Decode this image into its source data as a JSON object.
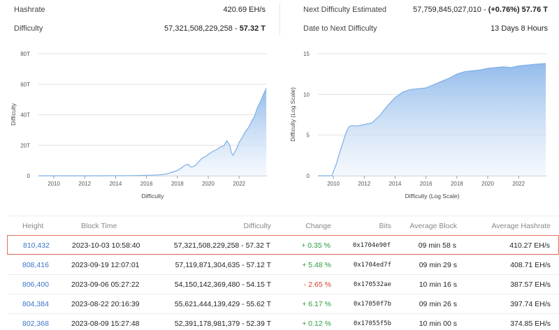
{
  "stats": {
    "hashrate_label": "Hashrate",
    "hashrate_value": "420.69 EH/s",
    "difficulty_label": "Difficulty",
    "difficulty_value_full": "57,321,508,229,258 - ",
    "difficulty_value_short": "57.32 T",
    "next_label": "Next Difficulty Estimated",
    "next_value_full": "57,759,845,027,010 - ",
    "next_value_short": "(+0.76%) 57.76 T",
    "date_label": "Date to Next Difficulty",
    "date_value": "13 Days 8 Hours"
  },
  "colors": {
    "line": "#7eaee6",
    "fill_top": "#8db8ea",
    "fill_bottom": "#eef4fc",
    "grid": "#e0e0e0",
    "positive": "#2a9d3c",
    "negative": "#d93a2b",
    "link": "#3a74c9",
    "highlight_border": "#e0705f"
  },
  "chart_data": [
    {
      "type": "area",
      "xlabel": "Difficulty",
      "ylabel": "Difficulty",
      "x_ticks": [
        "2010",
        "2012",
        "2014",
        "2016",
        "2018",
        "2020",
        "2022"
      ],
      "y_ticks": [
        "0",
        "20T",
        "40T",
        "60T",
        "80T"
      ],
      "xlim": [
        2009.0,
        2023.8
      ],
      "ylim": [
        0,
        80
      ],
      "grid": true,
      "x": [
        2009.0,
        2010.0,
        2011.0,
        2012.0,
        2013.0,
        2014.0,
        2015.0,
        2016.0,
        2016.8,
        2017.3,
        2017.7,
        2018.0,
        2018.3,
        2018.5,
        2018.7,
        2018.85,
        2019.0,
        2019.2,
        2019.4,
        2019.6,
        2019.8,
        2020.0,
        2020.2,
        2020.4,
        2020.6,
        2020.8,
        2021.0,
        2021.2,
        2021.4,
        2021.5,
        2021.6,
        2021.8,
        2022.0,
        2022.2,
        2022.4,
        2022.6,
        2022.8,
        2023.0,
        2023.2,
        2023.4,
        2023.6,
        2023.76
      ],
      "values": [
        0,
        0,
        0,
        0,
        0,
        0.05,
        0.1,
        0.3,
        0.6,
        1.2,
        2.5,
        3.5,
        5.5,
        7.0,
        7.5,
        5.8,
        6.0,
        7.0,
        9.5,
        11.5,
        12.5,
        14.0,
        15.5,
        16.5,
        17.5,
        19.0,
        19.5,
        23.0,
        20.0,
        15.0,
        13.5,
        17.0,
        22.0,
        25.0,
        29.0,
        31.5,
        35.5,
        39.0,
        45.0,
        49.0,
        54.0,
        57.32
      ]
    },
    {
      "type": "area",
      "xlabel": "Difficulty (Log Scale)",
      "ylabel": "Difficulty (Log Scale)",
      "x_ticks": [
        "2010",
        "2012",
        "2014",
        "2016",
        "2018",
        "2020",
        "2022"
      ],
      "y_ticks": [
        "0",
        "5",
        "10",
        "15"
      ],
      "xlim": [
        2009.0,
        2023.8
      ],
      "ylim": [
        0,
        15
      ],
      "grid": true,
      "x": [
        2009.0,
        2009.9,
        2010.0,
        2010.2,
        2010.4,
        2010.6,
        2010.8,
        2011.0,
        2011.2,
        2011.5,
        2012.0,
        2012.5,
        2013.0,
        2013.5,
        2014.0,
        2014.5,
        2015.0,
        2016.0,
        2016.5,
        2017.0,
        2017.5,
        2018.0,
        2018.5,
        2019.0,
        2019.5,
        2020.0,
        2020.5,
        2021.0,
        2021.5,
        2022.0,
        2022.5,
        2023.0,
        2023.76
      ],
      "values": [
        0,
        0,
        0.5,
        1.5,
        2.8,
        4.0,
        5.2,
        6.0,
        6.2,
        6.1,
        6.3,
        6.5,
        7.4,
        8.6,
        9.6,
        10.3,
        10.6,
        10.8,
        11.2,
        11.6,
        12.0,
        12.5,
        12.8,
        12.9,
        13.0,
        13.2,
        13.3,
        13.4,
        13.3,
        13.5,
        13.6,
        13.7,
        13.8
      ]
    }
  ],
  "table": {
    "headers": [
      "Height",
      "Block Time",
      "Difficulty",
      "Change",
      "Bits",
      "Average Block",
      "Average Hashrate"
    ],
    "rows": [
      {
        "height": "810,432",
        "time": "2023-10-03 10:58:40",
        "difficulty": "57,321,508,229,258 - 57.32 T",
        "change": "+ 0.35 %",
        "bits": "0x1704e90f",
        "avg_block": "09 min 58 s",
        "hashrate": "410.27 EH/s",
        "highlighted": true,
        "change_dir": "pos"
      },
      {
        "height": "808,416",
        "time": "2023-09-19 12:07:01",
        "difficulty": "57,119,871,304,635 - 57.12 T",
        "change": "+ 5.48 %",
        "bits": "0x1704ed7f",
        "avg_block": "09 min 29 s",
        "hashrate": "408.71 EH/s",
        "highlighted": false,
        "change_dir": "pos"
      },
      {
        "height": "806,400",
        "time": "2023-09-06 05:27:22",
        "difficulty": "54,150,142,369,480 - 54.15 T",
        "change": "- 2.65 %",
        "bits": "0x170532ae",
        "avg_block": "10 min 16 s",
        "hashrate": "387.57 EH/s",
        "highlighted": false,
        "change_dir": "neg"
      },
      {
        "height": "804,384",
        "time": "2023-08-22 20:16:39",
        "difficulty": "55,621,444,139,429 - 55.62 T",
        "change": "+ 6.17 %",
        "bits": "0x17050f7b",
        "avg_block": "09 min 26 s",
        "hashrate": "397.74 EH/s",
        "highlighted": false,
        "change_dir": "pos"
      },
      {
        "height": "802,368",
        "time": "2023-08-09 15:27:48",
        "difficulty": "52,391,178,981,379 - 52.39 T",
        "change": "+ 0.12 %",
        "bits": "0x17055f5b",
        "avg_block": "10 min 00 s",
        "hashrate": "374.85 EH/s",
        "highlighted": false,
        "change_dir": "pos"
      }
    ]
  }
}
